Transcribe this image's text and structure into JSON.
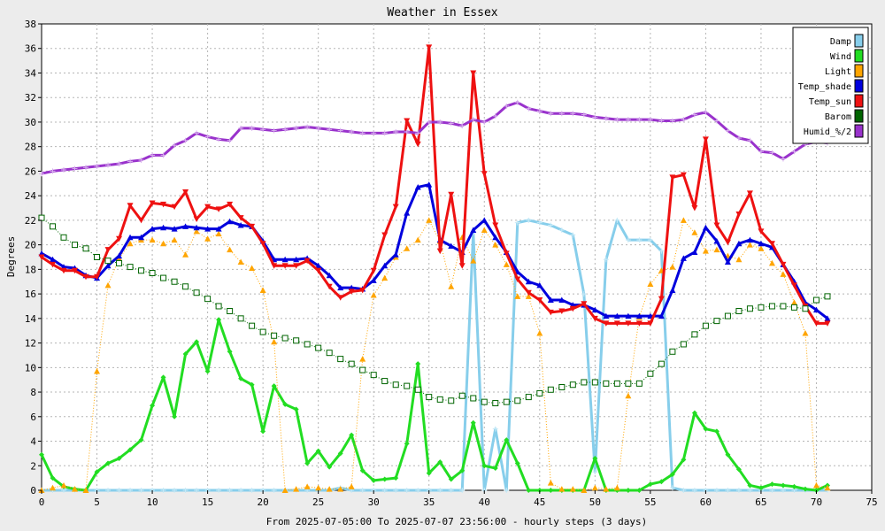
{
  "chart_data": {
    "type": "line",
    "title": "Weather in Essex",
    "xlabel": "From 2025-07-05:00 To 2025-07-07 23:56:00 - hourly steps (3 days)",
    "ylabel": "Degrees",
    "xlim": [
      0,
      75
    ],
    "ylim": [
      0,
      38
    ],
    "x_ticks": [
      0,
      5,
      10,
      15,
      20,
      25,
      30,
      35,
      40,
      45,
      50,
      55,
      60,
      65,
      70,
      75
    ],
    "y_ticks": [
      0,
      2,
      4,
      6,
      8,
      10,
      12,
      14,
      16,
      18,
      20,
      22,
      24,
      26,
      28,
      30,
      32,
      34,
      36,
      38
    ],
    "grid": true,
    "legend_position": "top-right",
    "x": [
      0,
      1,
      2,
      3,
      4,
      5,
      6,
      7,
      8,
      9,
      10,
      11,
      12,
      13,
      14,
      15,
      16,
      17,
      18,
      19,
      20,
      21,
      22,
      23,
      24,
      25,
      26,
      27,
      28,
      29,
      30,
      31,
      32,
      33,
      34,
      35,
      36,
      37,
      38,
      39,
      40,
      41,
      42,
      43,
      44,
      45,
      46,
      47,
      48,
      49,
      50,
      51,
      52,
      53,
      54,
      55,
      56,
      57,
      58,
      59,
      60,
      61,
      62,
      63,
      64,
      65,
      66,
      67,
      68,
      69,
      70,
      71
    ],
    "series": [
      {
        "name": "Damp",
        "color": "#87ceeb",
        "marker": "plus",
        "line": "solid",
        "width": 3,
        "values": [
          0,
          0,
          0,
          0,
          0,
          0,
          0,
          0,
          0,
          0,
          0,
          0,
          0,
          0,
          0,
          0,
          0,
          0,
          0,
          0,
          0,
          0,
          0,
          0,
          0,
          0,
          0,
          0.2,
          0,
          0,
          0,
          0,
          0,
          0,
          0,
          0,
          0,
          0,
          0,
          21,
          0,
          5,
          0,
          21.8,
          22,
          21.8,
          21.6,
          21.2,
          20.8,
          16,
          1.5,
          18.8,
          22,
          20.4,
          20.4,
          20.4,
          19.5,
          0.2,
          0,
          0,
          0,
          0,
          0,
          0,
          0,
          0,
          0,
          0,
          0,
          0,
          0,
          0
        ]
      },
      {
        "name": "Wind",
        "color": "#22dd22",
        "marker": "diamond",
        "line": "solid",
        "width": 3,
        "values": [
          2.9,
          1,
          0.3,
          0.1,
          0,
          1.5,
          2.2,
          2.6,
          3.3,
          4.1,
          6.9,
          9.2,
          6,
          11.1,
          12.1,
          9.7,
          13.9,
          11.3,
          9.1,
          8.6,
          4.8,
          8.5,
          7,
          6.6,
          2.2,
          3.2,
          1.9,
          3,
          4.5,
          1.6,
          0.8,
          0.9,
          1,
          3.8,
          10.3,
          1.4,
          2.3,
          0.9,
          1.6,
          5.5,
          2,
          1.8,
          4.1,
          2.2,
          0,
          0,
          0,
          0,
          0,
          0,
          2.6,
          0,
          0,
          0,
          0,
          0.5,
          0.7,
          1.3,
          2.5,
          6.3,
          5,
          4.8,
          2.9,
          1.7,
          0.4,
          0.2,
          0.5,
          0.4,
          0.3,
          0.1,
          0,
          0.4
        ]
      },
      {
        "name": "Light",
        "color": "#ffa500",
        "marker": "triangle",
        "line": "dotted",
        "width": 1,
        "values": [
          0,
          0.2,
          0.4,
          0.1,
          0,
          9.7,
          16.7,
          18.9,
          20.1,
          20.4,
          20.4,
          20.1,
          20.4,
          19.2,
          21.1,
          20.5,
          20.9,
          19.6,
          18.6,
          18.1,
          16.3,
          12.1,
          0,
          0.1,
          0.3,
          0.2,
          0.1,
          0.1,
          0.3,
          10.7,
          15.9,
          17.3,
          19,
          19.7,
          20.4,
          22,
          20.3,
          16.6,
          20.6,
          18.7,
          21.2,
          20,
          18.4,
          15.8,
          15.8,
          12.8,
          0.6,
          0.1,
          0.1,
          0,
          0.2,
          0.1,
          0.2,
          7.7,
          14.1,
          16.8,
          17.9,
          18.2,
          22,
          21,
          19.5,
          19.6,
          19.1,
          18.8,
          20,
          19.7,
          18.5,
          17.6,
          15.3,
          12.8,
          0.4,
          0.2
        ]
      },
      {
        "name": "Temp_shade",
        "color": "#0000dd",
        "marker": "triangle",
        "line": "solid",
        "width": 3,
        "values": [
          19.3,
          18.8,
          18.2,
          18.1,
          17.5,
          17.3,
          18.3,
          19.1,
          20.6,
          20.6,
          21.3,
          21.4,
          21.3,
          21.5,
          21.4,
          21.3,
          21.3,
          21.9,
          21.6,
          21.5,
          20.3,
          18.8,
          18.8,
          18.8,
          18.9,
          18.3,
          17.5,
          16.5,
          16.5,
          16.4,
          17.1,
          18.3,
          19.2,
          22.6,
          24.7,
          24.9,
          20.4,
          19.9,
          19.4,
          21.2,
          22,
          20.6,
          19.4,
          17.8,
          17,
          16.7,
          15.5,
          15.5,
          15.1,
          15.1,
          14.7,
          14.2,
          14.2,
          14.2,
          14.2,
          14.2,
          14.2,
          16.3,
          18.9,
          19.4,
          21.4,
          20.3,
          18.6,
          20.1,
          20.4,
          20.1,
          19.8,
          18.4,
          17,
          15.3,
          14.7,
          14
        ]
      },
      {
        "name": "Temp_sun",
        "color": "#ee1111",
        "marker": "invtriangle",
        "line": "solid",
        "width": 3,
        "values": [
          19,
          18.4,
          17.9,
          17.9,
          17.4,
          17.4,
          19.6,
          20.5,
          23.2,
          22,
          23.4,
          23.3,
          23.1,
          24.3,
          22.1,
          23.1,
          22.9,
          23.3,
          22.2,
          21.5,
          20.1,
          18.3,
          18.3,
          18.3,
          18.7,
          17.9,
          16.6,
          15.7,
          16.2,
          16.3,
          17.9,
          20.8,
          23.1,
          30.1,
          28.2,
          36.1,
          19.5,
          24.1,
          18.3,
          34,
          25.8,
          21.6,
          19.3,
          17.2,
          16.1,
          15.5,
          14.5,
          14.6,
          14.8,
          15.2,
          14,
          13.6,
          13.6,
          13.6,
          13.6,
          13.6,
          15.6,
          25.5,
          25.7,
          23,
          28.6,
          21.6,
          20.2,
          22.5,
          24.2,
          21.1,
          20.1,
          18.4,
          16.7,
          15,
          13.6,
          13.6
        ]
      },
      {
        "name": "Barom",
        "color": "#006400",
        "marker": "square",
        "line": "dotted",
        "width": 1,
        "values": [
          22.2,
          21.5,
          20.6,
          20,
          19.7,
          19,
          18.7,
          18.5,
          18.2,
          17.9,
          17.7,
          17.3,
          17,
          16.6,
          16.1,
          15.6,
          15,
          14.6,
          14,
          13.4,
          12.9,
          12.6,
          12.4,
          12.2,
          11.9,
          11.6,
          11.2,
          10.7,
          10.3,
          9.8,
          9.4,
          8.9,
          8.6,
          8.5,
          8.2,
          7.6,
          7.4,
          7.3,
          7.7,
          7.5,
          7.2,
          7.1,
          7.2,
          7.3,
          7.6,
          7.9,
          8.2,
          8.4,
          8.6,
          8.8,
          8.8,
          8.7,
          8.7,
          8.7,
          8.7,
          9.5,
          10.3,
          11.3,
          11.9,
          12.7,
          13.4,
          13.8,
          14.2,
          14.6,
          14.8,
          14.9,
          15,
          15,
          14.9,
          14.8,
          15.5,
          15.8
        ]
      },
      {
        "name": "Humid_%/2",
        "color": "#9932cc",
        "marker": "plus",
        "line": "solid",
        "width": 3,
        "values": [
          25.8,
          26,
          26.1,
          26.2,
          26.3,
          26.4,
          26.5,
          26.6,
          26.8,
          26.9,
          27.3,
          27.3,
          28.1,
          28.5,
          29.1,
          28.8,
          28.6,
          28.5,
          29.5,
          29.5,
          29.4,
          29.3,
          29.4,
          29.5,
          29.6,
          29.5,
          29.4,
          29.3,
          29.2,
          29.1,
          29.1,
          29.1,
          29.2,
          29.2,
          29.1,
          30,
          30,
          29.9,
          29.7,
          30.2,
          30,
          30.5,
          31.3,
          31.6,
          31.1,
          30.9,
          30.7,
          30.7,
          30.7,
          30.6,
          30.4,
          30.3,
          30.2,
          30.2,
          30.2,
          30.2,
          30.1,
          30.1,
          30.2,
          30.6,
          30.8,
          30.1,
          29.3,
          28.7,
          28.5,
          27.6,
          27.5,
          27,
          27.6,
          28.2,
          28.4,
          28.3
        ]
      }
    ]
  }
}
